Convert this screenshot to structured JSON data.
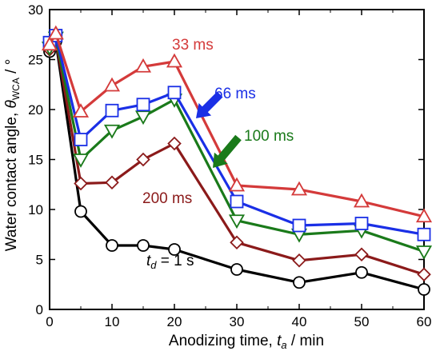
{
  "chart_data": {
    "type": "line",
    "xlabel": "Anodizing time, t_a / min",
    "xlabel_parts": {
      "prefix": "Anodizing time, ",
      "var": "t",
      "sub": "a",
      "suffix": " / min"
    },
    "ylabel": "Water contact angle, θ_WCA / °",
    "ylabel_parts": {
      "prefix": "Water contact angle, ",
      "var": "θ",
      "sub": "WCA",
      "suffix": " / °"
    },
    "xlim": [
      0,
      60
    ],
    "ylim": [
      0,
      30
    ],
    "xticks": [
      0,
      10,
      20,
      30,
      40,
      50,
      60
    ],
    "yticks": [
      0,
      5,
      10,
      15,
      20,
      25,
      30
    ],
    "grid": false,
    "series": [
      {
        "name": "33 ms",
        "color": "#d43a3a",
        "marker": "triangle-up",
        "x": [
          0,
          1,
          5,
          10,
          15,
          20,
          30,
          40,
          50,
          60
        ],
        "y": [
          26.5,
          27.6,
          19.8,
          22.4,
          24.3,
          24.8,
          12.4,
          12.0,
          10.8,
          9.3
        ]
      },
      {
        "name": "66 ms",
        "color": "#1a2fe6",
        "marker": "square",
        "x": [
          0,
          1,
          5,
          10,
          15,
          20,
          30,
          40,
          50,
          60
        ],
        "y": [
          26.7,
          27.4,
          17.0,
          19.9,
          20.5,
          21.7,
          10.8,
          8.4,
          8.6,
          7.5
        ]
      },
      {
        "name": "100 ms",
        "color": "#1a7a1a",
        "marker": "triangle-down",
        "x": [
          0,
          1,
          5,
          10,
          15,
          20,
          30,
          40,
          50,
          60
        ],
        "y": [
          26.2,
          27.2,
          15.0,
          17.9,
          19.3,
          21.0,
          8.9,
          7.5,
          7.9,
          5.8
        ]
      },
      {
        "name": "200 ms",
        "color": "#8b1a1a",
        "marker": "diamond",
        "x": [
          0,
          1,
          5,
          10,
          15,
          20,
          30,
          40,
          50,
          60
        ],
        "y": [
          26.0,
          27.0,
          12.6,
          12.7,
          15.0,
          16.6,
          6.7,
          4.9,
          5.5,
          3.5
        ]
      },
      {
        "name": "t_d = 1 s",
        "color": "#000000",
        "marker": "circle",
        "x": [
          0,
          1,
          5,
          10,
          15,
          20,
          30,
          40,
          50,
          60
        ],
        "y": [
          25.8,
          26.8,
          9.8,
          6.4,
          6.4,
          6.0,
          4.0,
          2.7,
          3.7,
          2.0
        ]
      }
    ],
    "annotations": [
      {
        "series": "33 ms",
        "text": "33 ms"
      },
      {
        "series": "66 ms",
        "text": "66 ms",
        "arrow": true
      },
      {
        "series": "100 ms",
        "text": "100 ms",
        "arrow": true
      },
      {
        "series": "200 ms",
        "text": "200 ms"
      },
      {
        "series": "t_d = 1 s",
        "text_parts": {
          "var": "t",
          "sub": "d",
          "suffix": " = 1 s"
        }
      }
    ]
  }
}
